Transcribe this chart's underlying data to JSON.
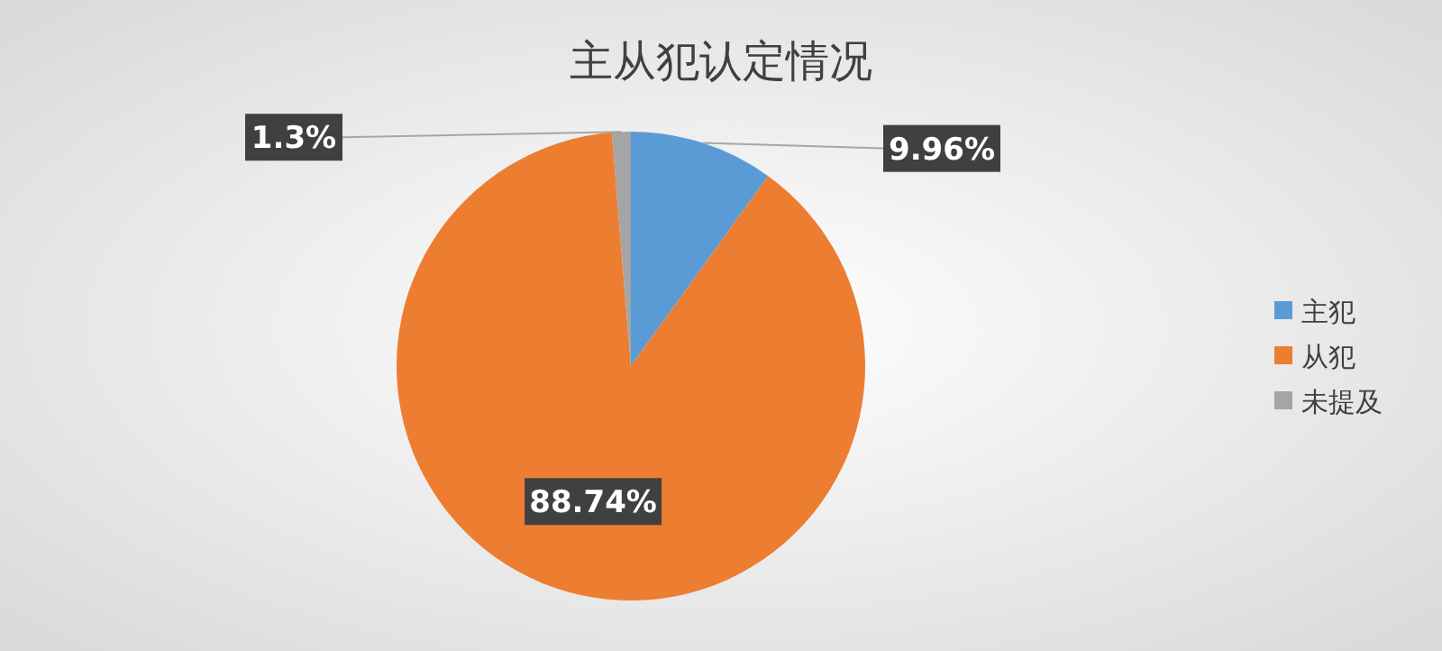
{
  "chart_data": {
    "type": "pie",
    "title": "主从犯认定情况",
    "categories": [
      "主犯",
      "从犯",
      "未提及"
    ],
    "values": [
      9.96,
      88.74,
      1.3
    ],
    "value_labels": [
      "9.96%",
      "88.74%",
      "1.3%"
    ],
    "colors": [
      "#5b9bd5",
      "#ed7d31",
      "#a5a5a5"
    ],
    "legend": "right"
  }
}
